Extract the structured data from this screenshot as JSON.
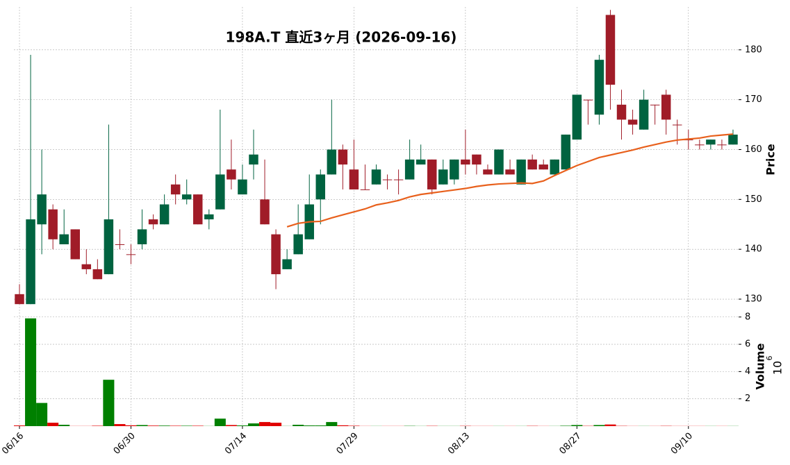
{
  "chart_data": {
    "type": "candlestick",
    "title": "198A.T 直近3ヶ月 (2026-09-16)",
    "categories": [
      "06/16",
      null,
      null,
      null,
      null,
      null,
      null,
      null,
      null,
      null,
      "06/30",
      null,
      null,
      null,
      null,
      null,
      null,
      null,
      null,
      null,
      "07/14",
      null,
      null,
      null,
      null,
      null,
      null,
      null,
      null,
      null,
      "07/29",
      null,
      null,
      null,
      null,
      null,
      null,
      null,
      null,
      null,
      "08/13",
      null,
      null,
      null,
      null,
      null,
      null,
      null,
      null,
      null,
      "08/27",
      null,
      null,
      null,
      null,
      null,
      null,
      null,
      null,
      null,
      "09/10",
      null,
      null,
      null,
      null
    ],
    "open": [
      131,
      129,
      145,
      148,
      141,
      144,
      137,
      136,
      135,
      141,
      139,
      141,
      146,
      145,
      153,
      150,
      151,
      146,
      148,
      156,
      151,
      157,
      150,
      143,
      136,
      139,
      142,
      150,
      155,
      160,
      156,
      152,
      153,
      154,
      154,
      154,
      157,
      158,
      153,
      154,
      158,
      159,
      156,
      155,
      156,
      153,
      158,
      157,
      155,
      156,
      162,
      170,
      167,
      187,
      169,
      166,
      164,
      169,
      171,
      165,
      162,
      161,
      161,
      161,
      161
    ],
    "high": [
      133,
      179,
      160,
      149,
      148,
      144,
      140,
      138,
      165,
      144,
      141,
      148,
      147,
      151,
      155,
      154,
      151,
      148,
      168,
      162,
      157,
      164,
      158,
      144,
      140,
      149,
      155,
      156,
      170,
      161,
      162,
      157,
      157,
      155,
      156,
      162,
      161,
      158,
      158,
      158,
      164,
      159,
      157,
      160,
      158,
      158,
      159,
      158,
      158,
      163,
      171,
      170,
      179,
      188,
      172,
      168,
      172,
      169,
      172,
      166,
      164,
      162,
      162,
      162,
      164
    ],
    "low": [
      129,
      129,
      139,
      140,
      141,
      138,
      135,
      134,
      135,
      140,
      137,
      140,
      144,
      145,
      149,
      149,
      145,
      144,
      148,
      152,
      151,
      154,
      145,
      132,
      136,
      139,
      142,
      145,
      155,
      152,
      152,
      152,
      153,
      152,
      151,
      154,
      157,
      151,
      153,
      153,
      155,
      155,
      155,
      155,
      155,
      153,
      156,
      156,
      155,
      156,
      162,
      165,
      165,
      168,
      162,
      163,
      164,
      165,
      163,
      161,
      160,
      160,
      160,
      160,
      161
    ],
    "close": [
      129,
      146,
      151,
      142,
      143,
      138,
      136,
      134,
      146,
      141,
      139,
      144,
      145,
      149,
      151,
      151,
      145,
      147,
      155,
      154,
      154,
      159,
      145,
      135,
      138,
      143,
      149,
      155,
      160,
      157,
      152,
      152,
      156,
      154,
      154,
      158,
      158,
      152,
      156,
      158,
      157,
      157,
      155,
      160,
      155,
      158,
      156,
      156,
      158,
      163,
      171,
      170,
      178,
      173,
      166,
      165,
      170,
      169,
      166,
      165,
      162,
      161,
      162,
      161,
      163
    ],
    "up_color": "#006340",
    "down_color": "#a01c28",
    "moving_average": {
      "color": "#e8601c",
      "values": [
        null,
        null,
        null,
        null,
        null,
        null,
        null,
        null,
        null,
        null,
        null,
        null,
        null,
        null,
        null,
        null,
        null,
        null,
        null,
        null,
        null,
        null,
        null,
        null,
        144.5,
        145.2,
        145.5,
        145.6,
        146.3,
        146.9,
        147.5,
        148.1,
        148.9,
        149.3,
        149.8,
        150.5,
        151.0,
        151.3,
        151.6,
        151.9,
        152.2,
        152.6,
        152.9,
        153.1,
        153.2,
        153.3,
        153.2,
        153.7,
        154.8,
        155.8,
        156.8,
        157.6,
        158.4,
        158.9,
        159.4,
        159.9,
        160.5,
        161.0,
        161.5,
        161.9,
        162.1,
        162.3,
        162.7,
        162.9,
        163.1
      ]
    },
    "ylabel": "Price",
    "ylim": [
      128.75,
      188.6
    ],
    "yticks": [
      130,
      140,
      150,
      160,
      170,
      180
    ],
    "volume": {
      "ylabel": "Volume",
      "multiplier_base": "10",
      "multiplier_exponent": "6",
      "up_color": "#008000",
      "down_color": "#e00000",
      "ylim": [
        0,
        8.7
      ],
      "yticks": [
        2,
        4,
        6,
        8
      ],
      "values": [
        0.05,
        7.9,
        1.7,
        0.25,
        0.1,
        0.01,
        0.01,
        0.03,
        3.4,
        0.15,
        0.06,
        0.08,
        0.04,
        0.04,
        0.03,
        0.03,
        0.03,
        0.01,
        0.55,
        0.08,
        0.05,
        0.2,
        0.3,
        0.25,
        0.01,
        0.1,
        0.05,
        0.05,
        0.3,
        0.06,
        0.03,
        0.01,
        0.01,
        0.01,
        0.01,
        0.02,
        0.01,
        0.02,
        0.01,
        0.01,
        0.02,
        0.01,
        0.01,
        0.01,
        0.01,
        0.01,
        0.02,
        0.01,
        0.01,
        0.03,
        0.08,
        0.02,
        0.08,
        0.12,
        0.02,
        0.01,
        0.01,
        0.01,
        0.02,
        0.01,
        0.01,
        0.01,
        0.01,
        0.01,
        0.01
      ]
    },
    "grid": true
  }
}
